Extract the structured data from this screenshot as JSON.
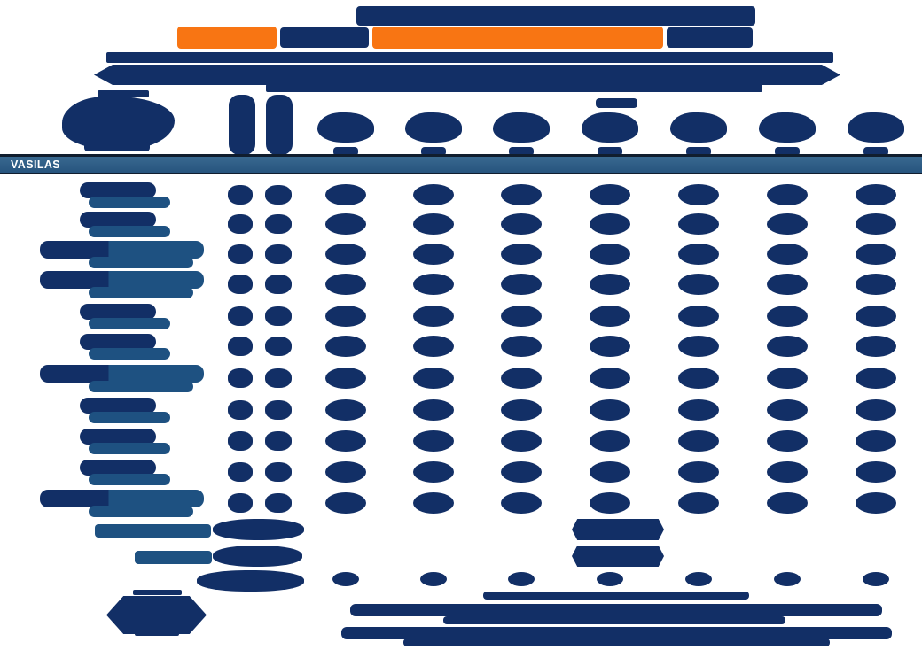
{
  "document": {
    "kind": "entry-list-table",
    "club_band": {
      "label": "VASILAS"
    },
    "colors": {
      "page_bg": "#ffffff",
      "navy": "#122f66",
      "steel_blue": "#1e5181",
      "orange": "#f87513",
      "band_top": "#39688f",
      "band_bottom": "#27547e",
      "band_border": "#101d2e",
      "band_text": "#ffffff"
    },
    "header": {
      "title_segment_colors": [
        "orange",
        "navy",
        "orange",
        "navy"
      ],
      "subtitle_lines": 2
    },
    "table": {
      "narrow_column_count": 2,
      "event_column_count": 7,
      "row_count": 11,
      "rows": [
        {
          "wide": false
        },
        {
          "wide": false
        },
        {
          "wide": true
        },
        {
          "wide": true
        },
        {
          "wide": false
        },
        {
          "wide": false
        },
        {
          "wide": true
        },
        {
          "wide": false
        },
        {
          "wide": false
        },
        {
          "wide": false
        },
        {
          "wide": true
        }
      ]
    },
    "summary": {
      "row_count": 3
    },
    "footer": {
      "note_line_count": 5
    }
  }
}
